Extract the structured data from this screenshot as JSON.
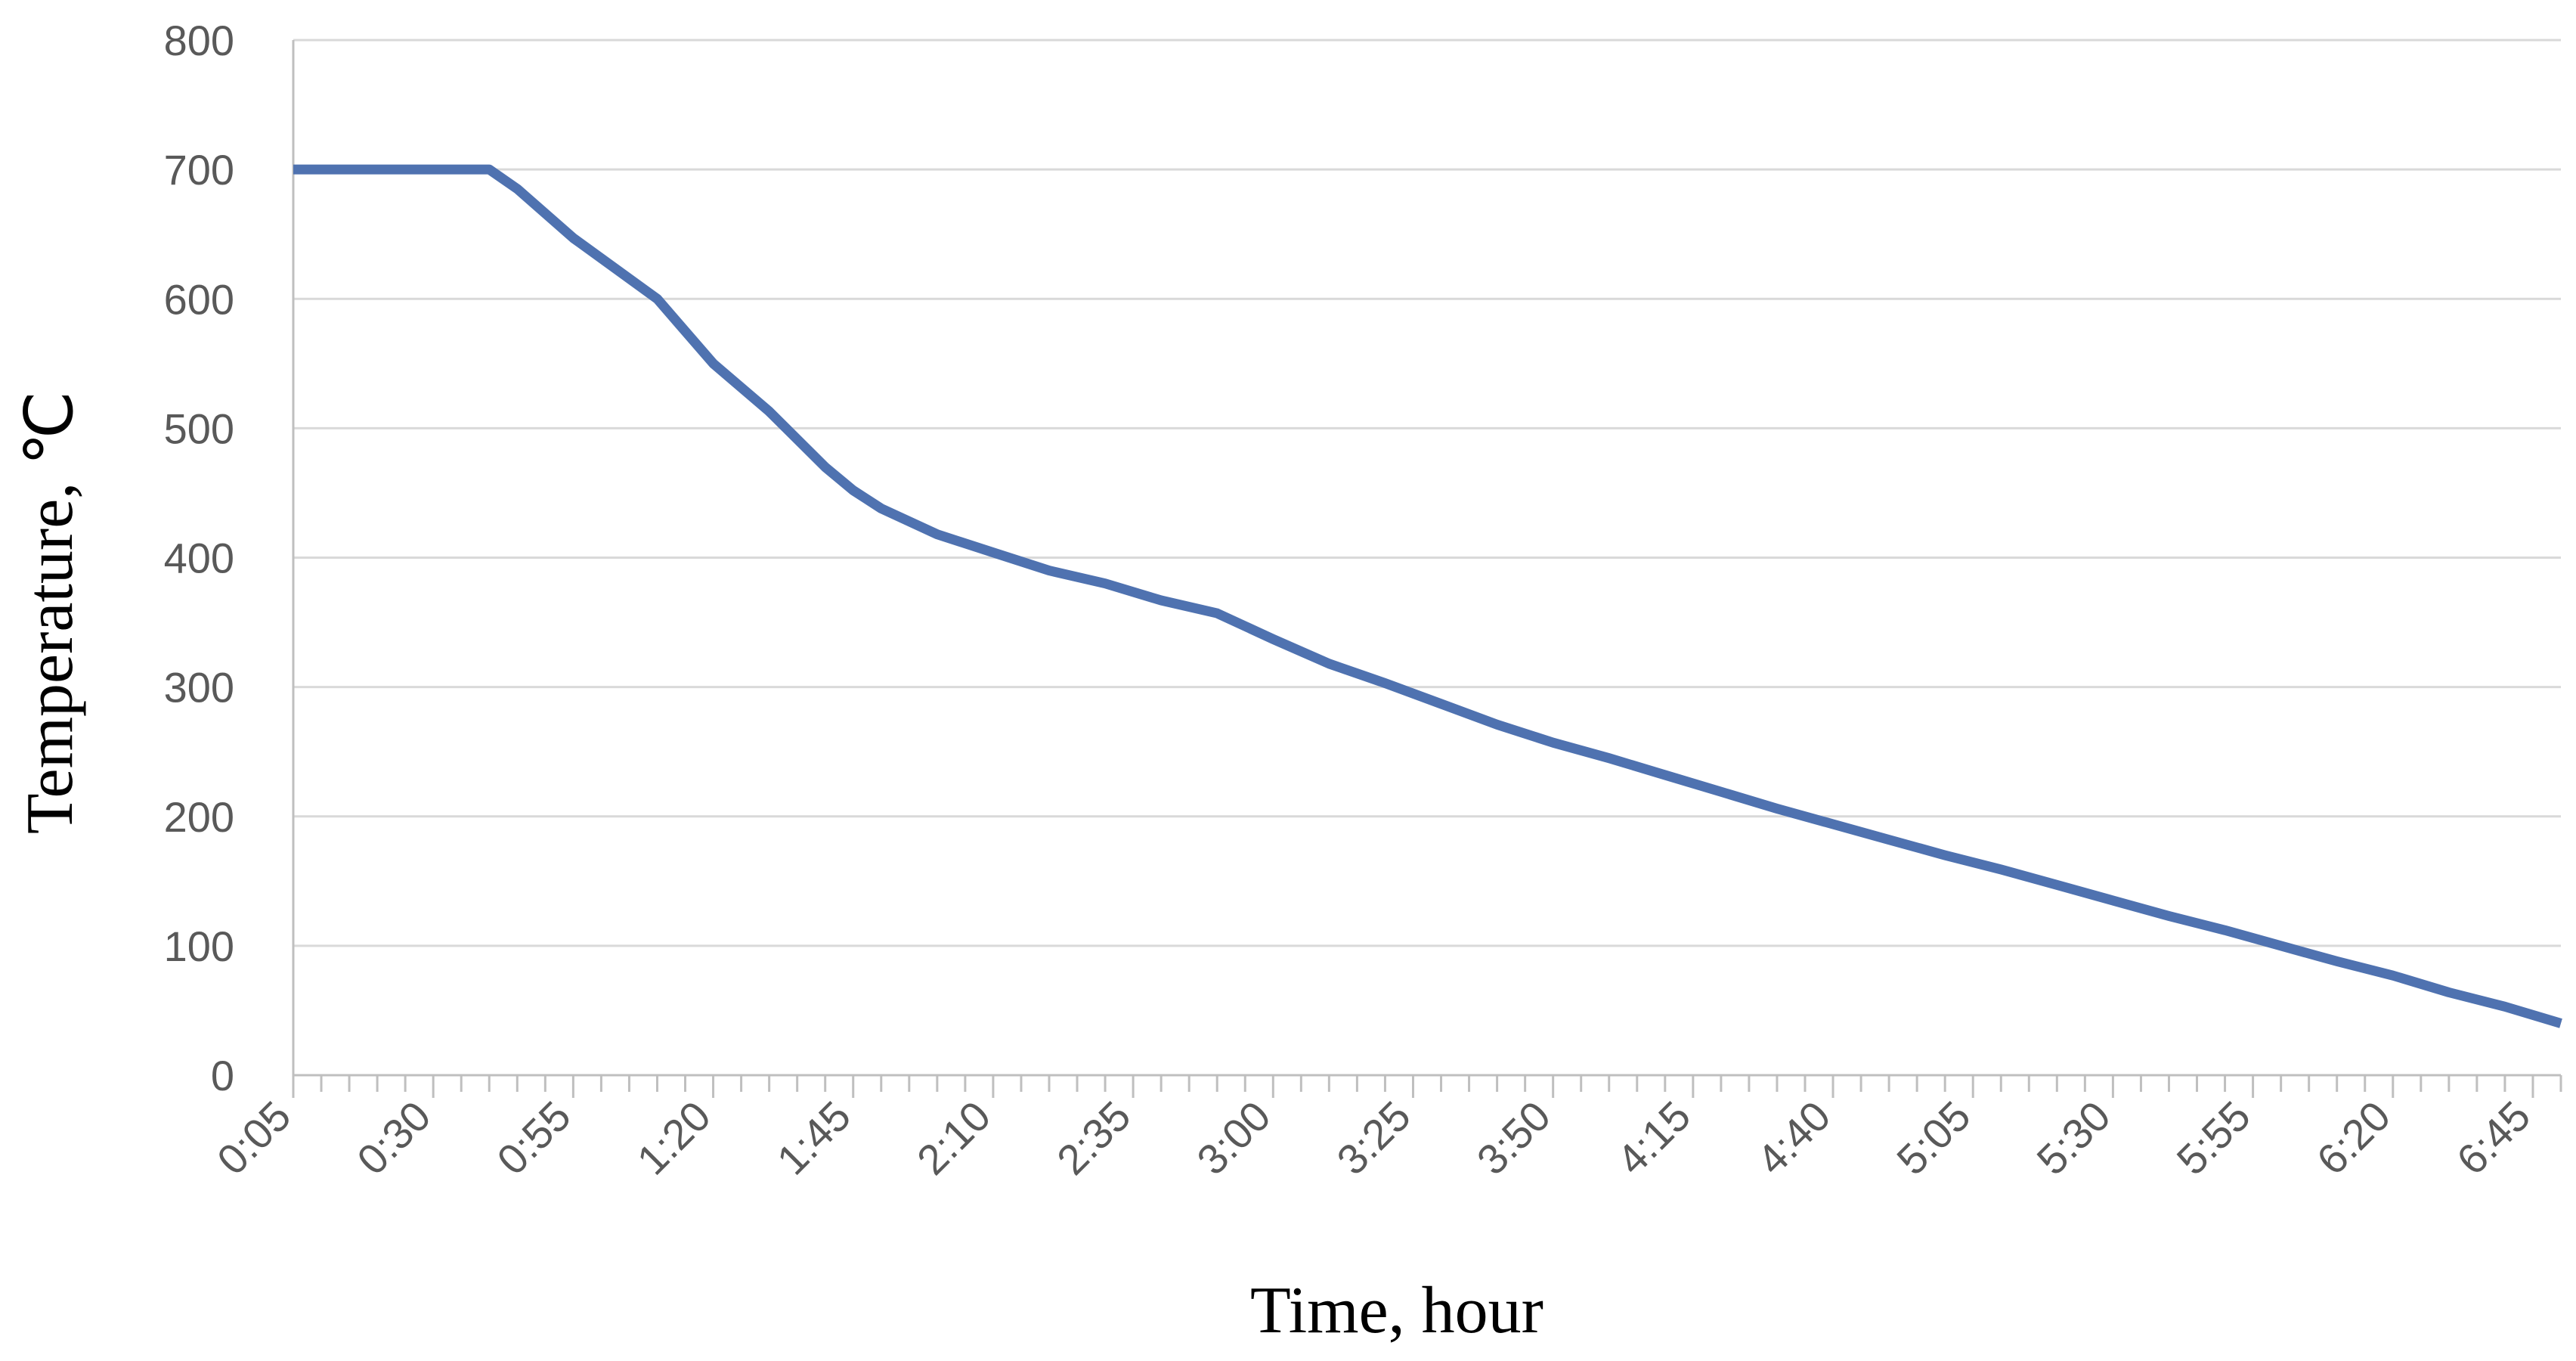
{
  "chart_data": {
    "type": "line",
    "title": "",
    "xlabel": "Time, hour",
    "ylabel": "Temperature, ℃",
    "ylim": [
      0,
      800
    ],
    "yticks": [
      0,
      100,
      200,
      300,
      400,
      500,
      600,
      700,
      800
    ],
    "xlim_minutes": [
      5,
      410
    ],
    "xticks": [
      "0:05",
      "0:30",
      "0:55",
      "1:20",
      "1:45",
      "2:10",
      "2:35",
      "3:00",
      "3:25",
      "3:50",
      "4:15",
      "4:40",
      "5:05",
      "5:30",
      "5:55",
      "6:20",
      "6:45"
    ],
    "grid": true,
    "legend": "none",
    "colors": {
      "line": "#4f72b0",
      "grid": "#d9d9d9",
      "axis": "#bfbfbf",
      "tick_text": "#595959"
    },
    "series": [
      {
        "x": [
          "0:05",
          "0:40",
          "0:45",
          "0:55",
          "1:10",
          "1:15",
          "1:20",
          "1:30",
          "1:40",
          "1:45",
          "1:50",
          "2:00",
          "2:10",
          "2:20",
          "2:30",
          "2:40",
          "2:50",
          "3:00",
          "3:10",
          "3:20",
          "3:30",
          "3:40",
          "3:50",
          "4:00",
          "4:10",
          "4:20",
          "4:30",
          "4:40",
          "4:50",
          "5:00",
          "5:10",
          "5:20",
          "5:30",
          "5:40",
          "5:50",
          "6:00",
          "6:10",
          "6:20",
          "6:30",
          "6:40",
          "6:50"
        ],
        "values": [
          700,
          700,
          685,
          647,
          600,
          575,
          550,
          513,
          470,
          452,
          438,
          418,
          404,
          390,
          380,
          367,
          357,
          337,
          318,
          303,
          287,
          271,
          257,
          245,
          232,
          219,
          206,
          194,
          182,
          170,
          159,
          147,
          135,
          123,
          112,
          100,
          88,
          77,
          64,
          53,
          40
        ]
      }
    ]
  }
}
